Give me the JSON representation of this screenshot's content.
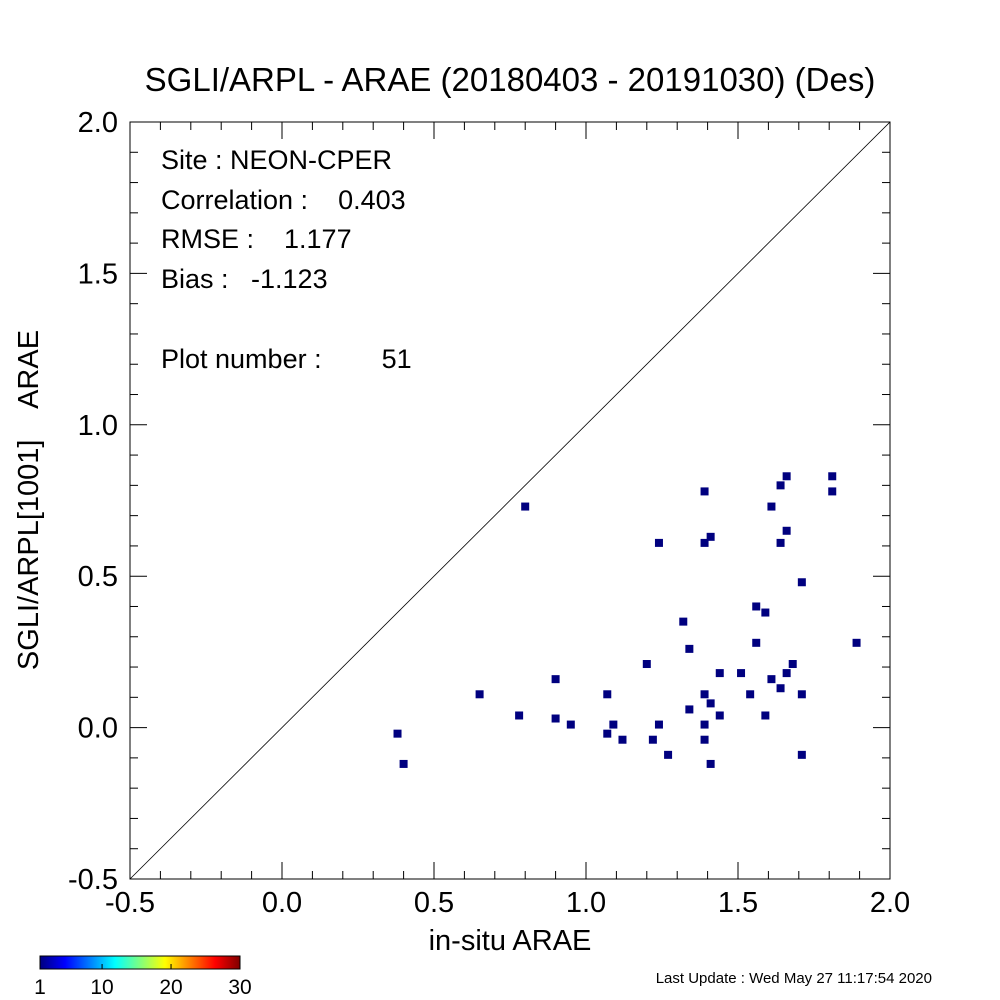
{
  "chart_data": {
    "type": "scatter",
    "title": "SGLI/ARPL - ARAE (20180403 - 20191030) (Des)",
    "xlabel": "in-situ ARAE",
    "ylabel": "SGLI/ARPL[1001]    ARAE",
    "xlim": [
      -0.5,
      2.0
    ],
    "ylim": [
      -0.5,
      2.0
    ],
    "x_ticks": [
      "-0.5",
      "0.0",
      "0.5",
      "1.0",
      "1.5",
      "2.0"
    ],
    "y_ticks": [
      "-0.5",
      "0.0",
      "0.5",
      "1.0",
      "1.5",
      "2.0"
    ],
    "one_to_one_line": true,
    "grid": false,
    "marker_color": "#00007f",
    "stats": {
      "site": "Site : NEON-CPER",
      "correlation": "Correlation :    0.403",
      "rmse": "RMSE :    1.177",
      "bias": "Bias :   -1.123",
      "plot_number": "Plot number :        51"
    },
    "points": [
      {
        "x": 0.38,
        "y": -0.02
      },
      {
        "x": 0.4,
        "y": -0.12
      },
      {
        "x": 0.65,
        "y": 0.11
      },
      {
        "x": 0.78,
        "y": 0.04
      },
      {
        "x": 0.8,
        "y": 0.73
      },
      {
        "x": 0.9,
        "y": 0.16
      },
      {
        "x": 0.9,
        "y": 0.03
      },
      {
        "x": 0.95,
        "y": 0.01
      },
      {
        "x": 1.07,
        "y": 0.11
      },
      {
        "x": 1.07,
        "y": -0.02
      },
      {
        "x": 1.09,
        "y": 0.01
      },
      {
        "x": 1.12,
        "y": -0.04
      },
      {
        "x": 1.2,
        "y": 0.21
      },
      {
        "x": 1.22,
        "y": -0.04
      },
      {
        "x": 1.24,
        "y": 0.61
      },
      {
        "x": 1.24,
        "y": 0.01
      },
      {
        "x": 1.27,
        "y": -0.09
      },
      {
        "x": 1.32,
        "y": 0.35
      },
      {
        "x": 1.34,
        "y": 0.26
      },
      {
        "x": 1.34,
        "y": 0.06
      },
      {
        "x": 1.39,
        "y": 0.78
      },
      {
        "x": 1.39,
        "y": 0.61
      },
      {
        "x": 1.39,
        "y": 0.11
      },
      {
        "x": 1.39,
        "y": 0.01
      },
      {
        "x": 1.39,
        "y": -0.04
      },
      {
        "x": 1.41,
        "y": 0.63
      },
      {
        "x": 1.41,
        "y": 0.08
      },
      {
        "x": 1.41,
        "y": -0.12
      },
      {
        "x": 1.44,
        "y": 0.18
      },
      {
        "x": 1.44,
        "y": 0.04
      },
      {
        "x": 1.51,
        "y": 0.18
      },
      {
        "x": 1.54,
        "y": 0.11
      },
      {
        "x": 1.56,
        "y": 0.4
      },
      {
        "x": 1.56,
        "y": 0.28
      },
      {
        "x": 1.59,
        "y": 0.38
      },
      {
        "x": 1.59,
        "y": 0.04
      },
      {
        "x": 1.61,
        "y": 0.73
      },
      {
        "x": 1.61,
        "y": 0.16
      },
      {
        "x": 1.64,
        "y": 0.8
      },
      {
        "x": 1.64,
        "y": 0.61
      },
      {
        "x": 1.64,
        "y": 0.13
      },
      {
        "x": 1.66,
        "y": 0.83
      },
      {
        "x": 1.66,
        "y": 0.65
      },
      {
        "x": 1.66,
        "y": 0.18
      },
      {
        "x": 1.68,
        "y": 0.21
      },
      {
        "x": 1.71,
        "y": 0.48
      },
      {
        "x": 1.71,
        "y": 0.11
      },
      {
        "x": 1.71,
        "y": -0.09
      },
      {
        "x": 1.81,
        "y": 0.83
      },
      {
        "x": 1.81,
        "y": 0.78
      },
      {
        "x": 1.89,
        "y": 0.28
      }
    ]
  },
  "colorbar": {
    "ticks": [
      "1",
      "10",
      "20",
      "30"
    ],
    "min": 1,
    "max": 30,
    "colors": [
      "#00007f",
      "#0000ff",
      "#007fff",
      "#00ffff",
      "#7fff7f",
      "#ffff00",
      "#ff7f00",
      "#ff0000",
      "#7f0000"
    ]
  },
  "footer": {
    "last_update": "Last Update : Wed May 27 11:17:54 2020"
  }
}
